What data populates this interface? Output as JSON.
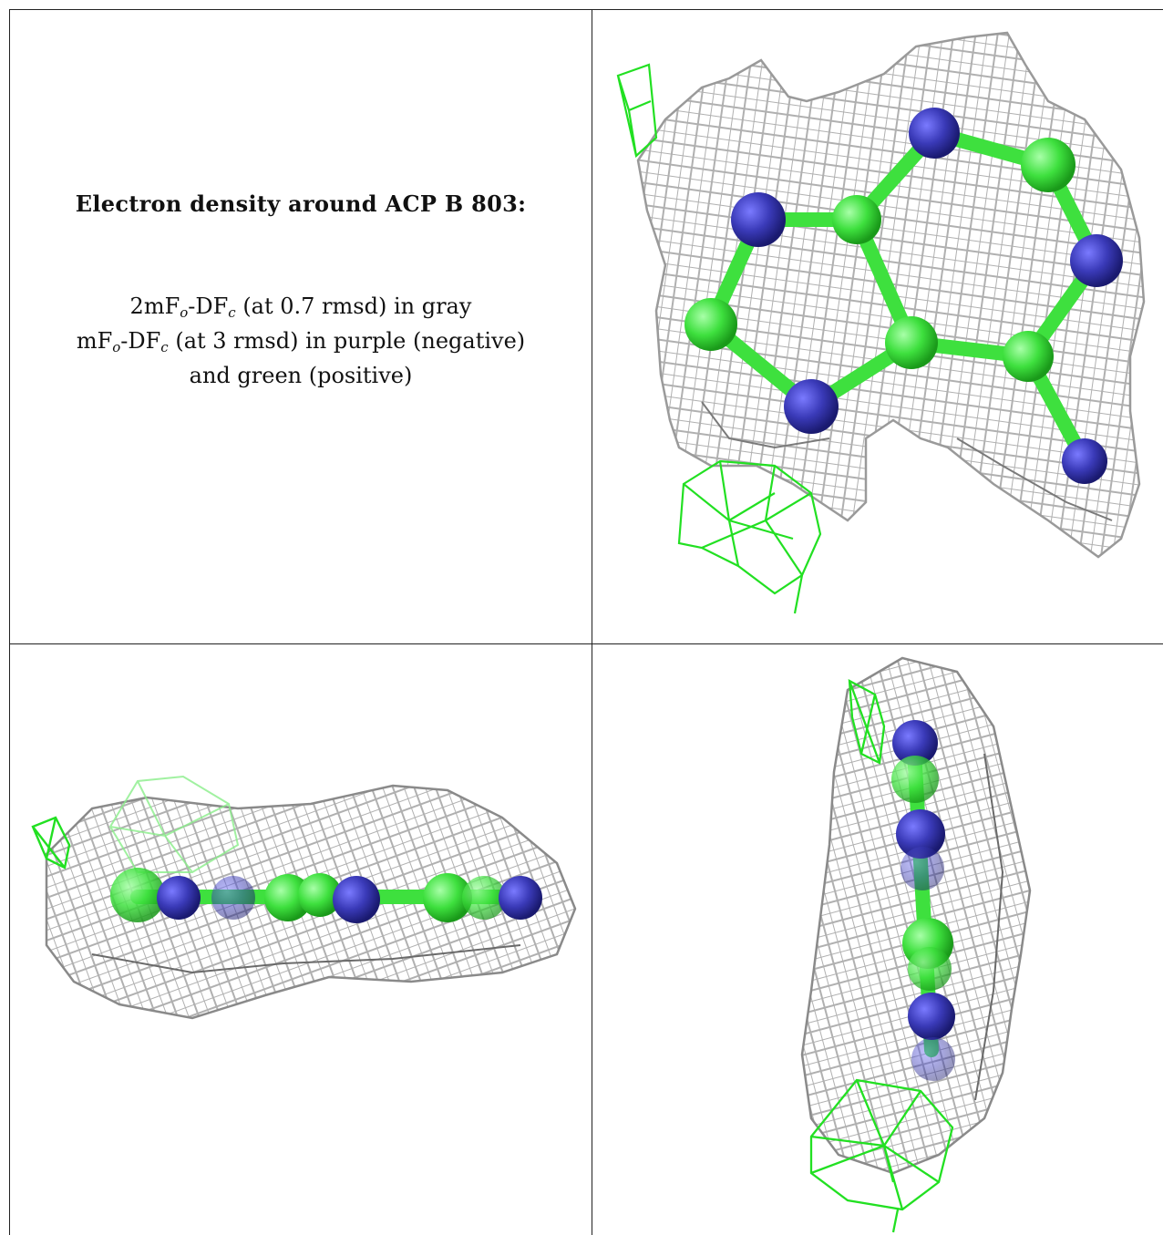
{
  "caption": {
    "title": "Electron density around ACP B 803:",
    "line1": {
      "pre": "2mF",
      "sub1": "o",
      "mid": "-DF",
      "sub2": "c",
      "post": " (at 0.7 rmsd) in gray"
    },
    "line2": {
      "pre": "mF",
      "sub1": "o",
      "mid": "-DF",
      "sub2": "c",
      "post": " (at 3 rmsd) in purple (negative)"
    },
    "line3": "and green (positive)"
  },
  "colors": {
    "mesh_gray": "#b8b8b8",
    "mesh_gray_dark": "#808080",
    "positive_green": "#22e022",
    "nitrogen_blue": "#3a3ab8",
    "carbon_green": "#3ee03e",
    "border": "#222222"
  },
  "panels": [
    "caption-panel",
    "top-view-panel",
    "side-view-panel",
    "edge-view-panel"
  ]
}
